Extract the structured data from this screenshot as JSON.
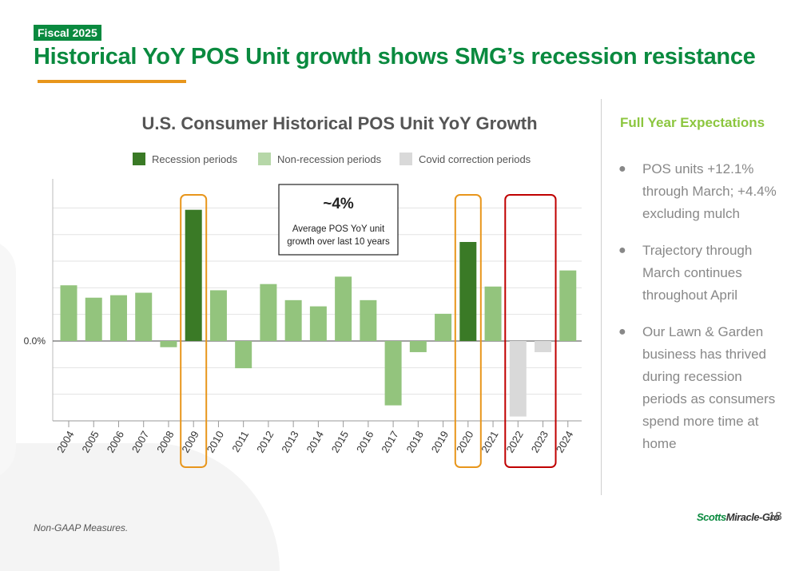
{
  "header": {
    "badge": "Fiscal 2025",
    "title": "Historical YoY POS Unit growth shows SMG’s recession resistance"
  },
  "colors": {
    "brand_green": "#0a8a3f",
    "accent_orange": "#e8961c",
    "recession": "#3a7a26",
    "non_recession": "#93c47d",
    "covid": "#d9d9d9",
    "covid_box": "#c00000",
    "recession_box": "#e8961c"
  },
  "chart_data": {
    "type": "bar",
    "title": "U.S. Consumer Historical POS Unit YoY Growth",
    "xlabel": "",
    "ylabel": "",
    "y_zero_label": "0.0%",
    "grid": true,
    "legend_position": "top",
    "categories": [
      "2004",
      "2005",
      "2006",
      "2007",
      "2008",
      "2009",
      "2010",
      "2011",
      "2012",
      "2013",
      "2014",
      "2015",
      "2016",
      "2017",
      "2018",
      "2019",
      "2020",
      "2021",
      "2022",
      "2023",
      "2024"
    ],
    "values": [
      4.5,
      3.5,
      3.7,
      3.9,
      -0.5,
      10.6,
      4.1,
      -2.2,
      4.6,
      3.3,
      2.8,
      5.2,
      3.3,
      -5.2,
      -0.9,
      2.2,
      8.0,
      4.4,
      -6.1,
      -0.9,
      5.7
    ],
    "period_types": [
      "non_recession",
      "non_recession",
      "non_recession",
      "non_recession",
      "non_recession",
      "recession",
      "non_recession",
      "non_recession",
      "non_recession",
      "non_recession",
      "non_recession",
      "non_recession",
      "non_recession",
      "non_recession",
      "non_recession",
      "non_recession",
      "recession",
      "non_recession",
      "covid",
      "covid",
      "non_recession"
    ],
    "legend": [
      {
        "key": "recession",
        "label": "Recession periods"
      },
      {
        "key": "non_recession",
        "label": "Non-recession periods"
      },
      {
        "key": "covid",
        "label": "Covid correction periods"
      }
    ],
    "annotation": {
      "headline": "~4%",
      "line1": "Average POS YoY unit",
      "line2": "growth over last 10 years"
    }
  },
  "sidebar": {
    "heading": "Full Year Expectations",
    "bullet_char": "●",
    "bullets": [
      "POS units +12.1% through March; +4.4% excluding mulch",
      "Trajectory through March continues throughout April",
      "Our Lawn & Garden business has thrived during recession periods as consumers spend more time at home"
    ]
  },
  "footer": {
    "note": "Non-GAAP Measures.",
    "logo_part1": "Scotts",
    "logo_part2": "Miracle-Gro",
    "page_number": "18"
  }
}
